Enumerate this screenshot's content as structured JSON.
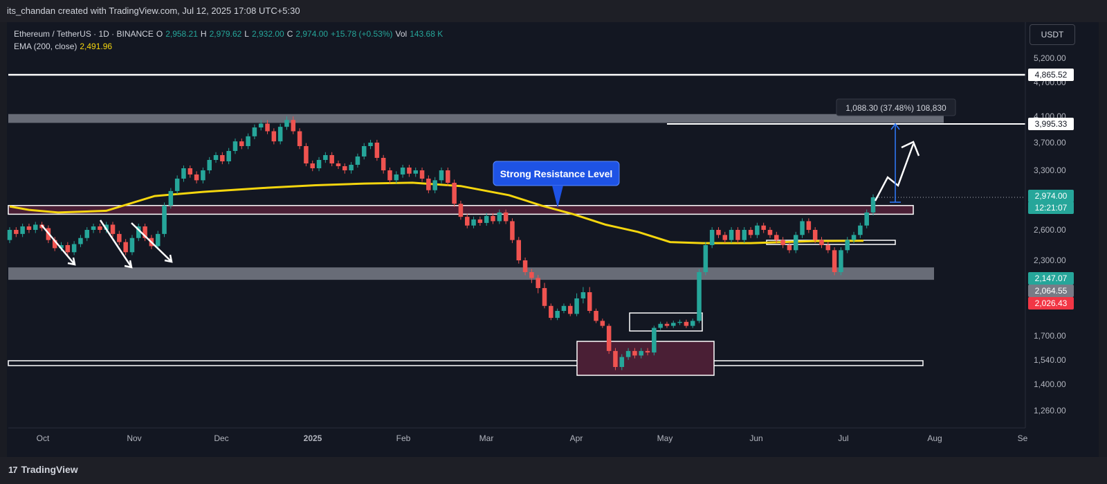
{
  "header": {
    "attribution": "its_chandan created with TradingView.com, Jul 12, 2025 17:08 UTC+5:30"
  },
  "legend": {
    "symbol": "Ethereum / TetherUS · 1D · BINANCE",
    "o_label": "O",
    "o": "2,958.21",
    "h_label": "H",
    "h": "2,979.62",
    "l_label": "L",
    "l": "2,932.00",
    "c_label": "C",
    "c": "2,974.00",
    "change": "+15.78 (+0.53%)",
    "vol_label": "Vol",
    "vol": "143.68 K",
    "ema_label": "EMA (200, close)",
    "ema": "2,491.96"
  },
  "currency": "USDT",
  "footer": {
    "brand": "TradingView",
    "logo": "17"
  },
  "colors": {
    "up": "#26a69a",
    "down": "#ef5350",
    "ema": "#f5d60e",
    "zone_fill": "#4a1f35",
    "grey_band": "#787b86",
    "accent": "#2962ff"
  },
  "chart_data": {
    "type": "candlestick",
    "symbol": "ETH/USDT",
    "interval": "1D",
    "yaxis_ticks": [
      "5,200.00",
      "4,700.00",
      "4,100.00",
      "3,700.00",
      "3,300.00",
      "2,600.00",
      "2,300.00",
      "1,700.00",
      "1,540.00",
      "1,400.00",
      "1,260.00"
    ],
    "xaxis_ticks": [
      "Oct",
      "Nov",
      "Dec",
      "2025",
      "Feb",
      "Mar",
      "Apr",
      "May",
      "Jun",
      "Jul",
      "Aug",
      "Se"
    ],
    "price_labels": [
      {
        "text": "4,865.52",
        "value": 4865.52,
        "kind": "line"
      },
      {
        "text": "3,995.33",
        "value": 3995.33,
        "kind": "line"
      },
      {
        "text": "2,974.00",
        "value": 2974.0,
        "kind": "last"
      },
      {
        "text": "12:21:07",
        "kind": "countdown"
      },
      {
        "text": "2,147.07",
        "value": 2147.07,
        "kind": "green"
      },
      {
        "text": "2,064.55",
        "value": 2064.55,
        "kind": "grey"
      },
      {
        "text": "2,026.43",
        "value": 2026.43,
        "kind": "red"
      }
    ],
    "annotations": {
      "resistance_label": "Strong Resistance Level",
      "measure_label": "1,088.30 (37.48%) 108,830"
    },
    "levels": {
      "ath_line": 4865.52,
      "target_line": 3995.33,
      "grey_band_top": [
        4010,
        4140
      ],
      "grey_band_mid": [
        2140,
        2240
      ],
      "resistance_zone": [
        2780,
        2880
      ],
      "support_line": 1548,
      "small_zone": [
        2420,
        2490
      ]
    },
    "ema200": [
      [
        0,
        2870
      ],
      [
        6,
        2830
      ],
      [
        15,
        2800
      ],
      [
        30,
        2820
      ],
      [
        45,
        2990
      ],
      [
        60,
        3040
      ],
      [
        80,
        3090
      ],
      [
        95,
        3120
      ],
      [
        110,
        3140
      ],
      [
        125,
        3150
      ],
      [
        140,
        3110
      ],
      [
        155,
        3000
      ],
      [
        165,
        2880
      ],
      [
        175,
        2780
      ],
      [
        185,
        2660
      ],
      [
        195,
        2580
      ],
      [
        205,
        2480
      ],
      [
        215,
        2470
      ],
      [
        230,
        2470
      ],
      [
        250,
        2490
      ],
      [
        265,
        2492
      ]
    ],
    "candles": [
      [
        0,
        2500,
        2600
      ],
      [
        2,
        2600,
        2560
      ],
      [
        4,
        2560,
        2640
      ],
      [
        6,
        2640,
        2600
      ],
      [
        8,
        2600,
        2660
      ],
      [
        10,
        2660,
        2620
      ],
      [
        12,
        2620,
        2500
      ],
      [
        14,
        2500,
        2420
      ],
      [
        16,
        2420,
        2450
      ],
      [
        18,
        2450,
        2380
      ],
      [
        20,
        2380,
        2460
      ],
      [
        22,
        2460,
        2520
      ],
      [
        24,
        2520,
        2600
      ],
      [
        26,
        2600,
        2640
      ],
      [
        28,
        2640,
        2600
      ],
      [
        30,
        2600,
        2660
      ],
      [
        32,
        2660,
        2560
      ],
      [
        34,
        2560,
        2480
      ],
      [
        36,
        2480,
        2380
      ],
      [
        38,
        2380,
        2520
      ],
      [
        40,
        2520,
        2640
      ],
      [
        42,
        2640,
        2520
      ],
      [
        44,
        2520,
        2440
      ],
      [
        46,
        2440,
        2560
      ],
      [
        48,
        2560,
        2880
      ],
      [
        50,
        2880,
        3050
      ],
      [
        52,
        3050,
        3200
      ],
      [
        54,
        3200,
        3330
      ],
      [
        56,
        3330,
        3250
      ],
      [
        58,
        3250,
        3180
      ],
      [
        60,
        3180,
        3300
      ],
      [
        62,
        3300,
        3450
      ],
      [
        64,
        3450,
        3520
      ],
      [
        66,
        3520,
        3430
      ],
      [
        68,
        3430,
        3580
      ],
      [
        70,
        3580,
        3720
      ],
      [
        72,
        3720,
        3650
      ],
      [
        74,
        3650,
        3800
      ],
      [
        76,
        3800,
        3940
      ],
      [
        78,
        3940,
        4000
      ],
      [
        80,
        4000,
        3880
      ],
      [
        82,
        3880,
        3720
      ],
      [
        84,
        3720,
        3950
      ],
      [
        86,
        3950,
        4050
      ],
      [
        88,
        4050,
        3880
      ],
      [
        90,
        3880,
        3650
      ],
      [
        92,
        3650,
        3400
      ],
      [
        94,
        3400,
        3330
      ],
      [
        96,
        3330,
        3450
      ],
      [
        98,
        3450,
        3520
      ],
      [
        100,
        3520,
        3400
      ],
      [
        102,
        3400,
        3360
      ],
      [
        104,
        3360,
        3300
      ],
      [
        106,
        3300,
        3380
      ],
      [
        108,
        3380,
        3500
      ],
      [
        110,
        3500,
        3650
      ],
      [
        112,
        3650,
        3700
      ],
      [
        114,
        3700,
        3480
      ],
      [
        116,
        3480,
        3300
      ],
      [
        118,
        3300,
        3180
      ],
      [
        120,
        3180,
        3250
      ],
      [
        122,
        3250,
        3340
      ],
      [
        124,
        3340,
        3260
      ],
      [
        126,
        3260,
        3300
      ],
      [
        128,
        3300,
        3200
      ],
      [
        130,
        3200,
        3060
      ],
      [
        132,
        3060,
        3180
      ],
      [
        134,
        3180,
        3300
      ],
      [
        136,
        3300,
        3150
      ],
      [
        138,
        3150,
        2900
      ],
      [
        140,
        2900,
        2750
      ],
      [
        142,
        2750,
        2650
      ],
      [
        144,
        2650,
        2720
      ],
      [
        146,
        2720,
        2680
      ],
      [
        148,
        2680,
        2760
      ],
      [
        150,
        2760,
        2700
      ],
      [
        152,
        2700,
        2800
      ],
      [
        154,
        2800,
        2700
      ],
      [
        156,
        2700,
        2500
      ],
      [
        158,
        2500,
        2300
      ],
      [
        160,
        2300,
        2200
      ],
      [
        162,
        2200,
        2150
      ],
      [
        164,
        2150,
        2100
      ],
      [
        166,
        2100,
        2000
      ],
      [
        168,
        2000,
        1880
      ],
      [
        170,
        1880,
        1950
      ],
      [
        172,
        1950,
        2000
      ],
      [
        174,
        2000,
        1920
      ],
      [
        176,
        1920,
        2050
      ],
      [
        178,
        2050,
        2080
      ],
      [
        180,
        2080,
        1950
      ],
      [
        182,
        1950,
        1850
      ],
      [
        184,
        1850,
        1800
      ],
      [
        186,
        1800,
        1600
      ],
      [
        188,
        1600,
        1500
      ],
      [
        190,
        1500,
        1560
      ],
      [
        192,
        1560,
        1600
      ],
      [
        194,
        1600,
        1570
      ],
      [
        196,
        1570,
        1600
      ],
      [
        198,
        1600,
        1590
      ],
      [
        200,
        1590,
        1780
      ],
      [
        202,
        1780,
        1820
      ],
      [
        204,
        1820,
        1800
      ],
      [
        206,
        1800,
        1830
      ],
      [
        208,
        1830,
        1840
      ],
      [
        210,
        1840,
        1800
      ],
      [
        212,
        1800,
        1850
      ],
      [
        214,
        1850,
        2200
      ],
      [
        216,
        2200,
        2450
      ],
      [
        218,
        2450,
        2600
      ],
      [
        220,
        2600,
        2550
      ],
      [
        222,
        2550,
        2500
      ],
      [
        224,
        2500,
        2600
      ],
      [
        226,
        2600,
        2500
      ],
      [
        228,
        2500,
        2600
      ],
      [
        230,
        2600,
        2550
      ],
      [
        232,
        2550,
        2650
      ],
      [
        234,
        2650,
        2600
      ],
      [
        236,
        2600,
        2550
      ],
      [
        238,
        2550,
        2500
      ],
      [
        240,
        2500,
        2450
      ],
      [
        242,
        2450,
        2400
      ],
      [
        244,
        2400,
        2550
      ],
      [
        246,
        2550,
        2700
      ],
      [
        248,
        2700,
        2600
      ],
      [
        250,
        2600,
        2500
      ],
      [
        252,
        2500,
        2450
      ],
      [
        254,
        2450,
        2400
      ],
      [
        256,
        2400,
        2200
      ],
      [
        258,
        2200,
        2400
      ],
      [
        260,
        2400,
        2500
      ],
      [
        262,
        2500,
        2550
      ],
      [
        264,
        2550,
        2650
      ],
      [
        266,
        2650,
        2800
      ],
      [
        268,
        2800,
        2974
      ]
    ]
  }
}
